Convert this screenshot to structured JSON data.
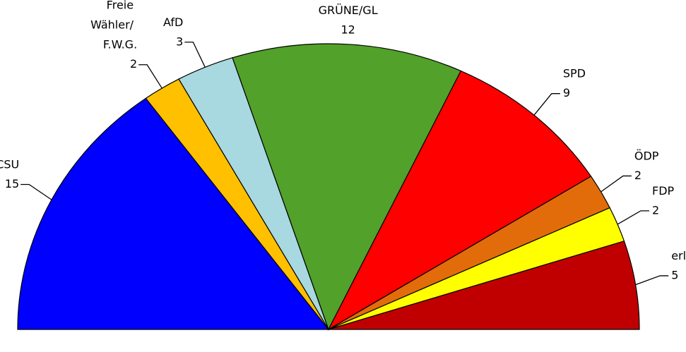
{
  "chart_data": {
    "type": "semicircle_pie",
    "categories": [
      "CSU",
      "Freie Wähler/ F.W.G.",
      "AfD",
      "GRÜNE/GL",
      "SPD",
      "ÖDP",
      "FDP",
      "erli"
    ],
    "values": [
      15,
      2,
      3,
      12,
      9,
      2,
      2,
      5
    ],
    "colors": [
      "#0000ff",
      "#ffc000",
      "#a8d8e0",
      "#52a12a",
      "#ff0000",
      "#e36c0a",
      "#ffff00",
      "#c00000"
    ]
  }
}
